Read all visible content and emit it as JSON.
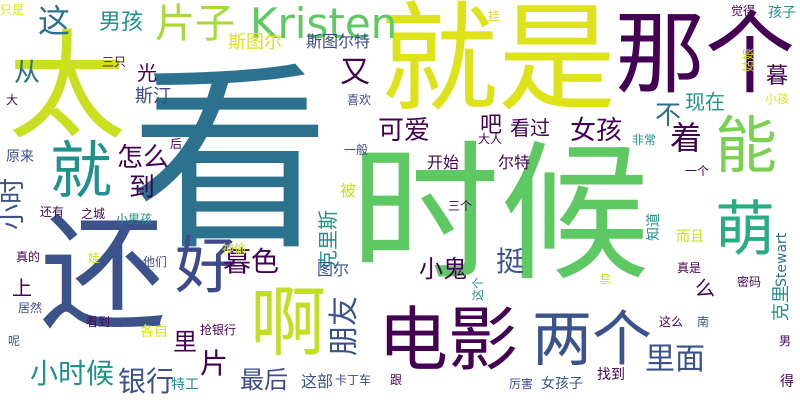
{
  "palette": {
    "dark_purple": "#440154",
    "indigo": "#3b528b",
    "teal": "#21918c",
    "blue": "#2c728e",
    "green": "#5ec962",
    "lime": "#c8e020",
    "yellow": "#fde725"
  },
  "words": [
    {
      "text": "看",
      "weight": 100,
      "color": "#2c728e"
    },
    {
      "text": "时候",
      "weight": 96,
      "color": "#5ec962"
    },
    {
      "text": "太",
      "weight": 78,
      "color": "#c8e020"
    },
    {
      "text": "就是",
      "weight": 82,
      "color": "#dde318"
    },
    {
      "text": "还",
      "weight": 76,
      "color": "#3b528b"
    },
    {
      "text": "那个",
      "weight": 66,
      "color": "#440154"
    },
    {
      "text": "就",
      "weight": 48,
      "color": "#21918c"
    },
    {
      "text": "能",
      "weight": 46,
      "color": "#7ad151"
    },
    {
      "text": "萌",
      "weight": 44,
      "color": "#27ad81"
    },
    {
      "text": "啊",
      "weight": 50,
      "color": "#c2df23"
    },
    {
      "text": "好",
      "weight": 40,
      "color": "#3e4a89"
    },
    {
      "text": "电影",
      "weight": 48,
      "color": "#440154"
    },
    {
      "text": "两个",
      "weight": 42,
      "color": "#3b528b"
    },
    {
      "text": "片子",
      "weight": 30,
      "color": "#a5db36"
    },
    {
      "text": "Kristen",
      "weight": 28,
      "color": "#5ec962"
    },
    {
      "text": "这",
      "weight": 24,
      "color": "#2c728e"
    },
    {
      "text": "男孩",
      "weight": 18,
      "color": "#21918c"
    },
    {
      "text": "又",
      "weight": 24,
      "color": "#440154"
    },
    {
      "text": "斯图尔",
      "weight": 14,
      "color": "#dde318"
    },
    {
      "text": "斯图尔特",
      "weight": 14,
      "color": "#3e4a89"
    },
    {
      "text": "光",
      "weight": 14,
      "color": "#440154"
    },
    {
      "text": "从",
      "weight": 18,
      "color": "#2c728e"
    },
    {
      "text": "不",
      "weight": 20,
      "color": "#2c728e"
    },
    {
      "text": "着",
      "weight": 24,
      "color": "#440154"
    },
    {
      "text": "暮",
      "weight": 16,
      "color": "#440154"
    },
    {
      "text": "可爱",
      "weight": 20,
      "color": "#440154"
    },
    {
      "text": "吧",
      "weight": 18,
      "color": "#440154"
    },
    {
      "text": "看过",
      "weight": 16,
      "color": "#440154"
    },
    {
      "text": "女孩",
      "weight": 20,
      "color": "#440154"
    },
    {
      "text": "现在",
      "weight": 16,
      "color": "#21918c"
    },
    {
      "text": "怎么",
      "weight": 18,
      "color": "#440154"
    },
    {
      "text": "到",
      "weight": 18,
      "color": "#440154"
    },
    {
      "text": "小时",
      "weight": 18,
      "color": "#3b528b"
    },
    {
      "text": "暮色",
      "weight": 20,
      "color": "#440154"
    },
    {
      "text": "挺",
      "weight": 20,
      "color": "#3b528b"
    },
    {
      "text": "小鬼",
      "weight": 16,
      "color": "#440154"
    },
    {
      "text": "朋友",
      "weight": 20,
      "color": "#3b528b"
    },
    {
      "text": "上",
      "weight": 16,
      "color": "#440154"
    },
    {
      "text": "里",
      "weight": 16,
      "color": "#440154"
    },
    {
      "text": "片",
      "weight": 18,
      "color": "#440154"
    },
    {
      "text": "小时候",
      "weight": 18,
      "color": "#21918c"
    },
    {
      "text": "银行",
      "weight": 18,
      "color": "#3b528b"
    },
    {
      "text": "最后",
      "weight": 16,
      "color": "#3e4a89"
    },
    {
      "text": "里面",
      "weight": 20,
      "color": "#3b528b"
    },
    {
      "text": "么",
      "weight": 14,
      "color": "#440154"
    },
    {
      "text": "斯汀",
      "weight": 12,
      "color": "#3e4a89"
    },
    {
      "text": "开始",
      "weight": 12,
      "color": "#440154"
    },
    {
      "text": "尔特",
      "weight": 12,
      "color": "#440154"
    },
    {
      "text": "克里斯",
      "weight": 12,
      "color": "#21918c"
    },
    {
      "text": "被",
      "weight": 12,
      "color": "#c8e020"
    },
    {
      "text": "图尔",
      "weight": 12,
      "color": "#3b528b"
    },
    {
      "text": "这部",
      "weight": 12,
      "color": "#3b528b"
    },
    {
      "text": "卡丁车",
      "weight": 10,
      "color": "#3e4a89"
    },
    {
      "text": "跟",
      "weight": 10,
      "color": "#440154"
    },
    {
      "text": "厉害",
      "weight": 10,
      "color": "#3e4a89"
    },
    {
      "text": "女孩子",
      "weight": 10,
      "color": "#3b528b"
    },
    {
      "text": "找到",
      "weight": 10,
      "color": "#440154"
    },
    {
      "text": "南",
      "weight": 10,
      "color": "#3b528b"
    },
    {
      "text": "这么",
      "weight": 10,
      "color": "#440154"
    },
    {
      "text": "知道",
      "weight": 10,
      "color": "#21918c"
    },
    {
      "text": "而且",
      "weight": 10,
      "color": "#c8e020"
    },
    {
      "text": "真是",
      "weight": 10,
      "color": "#440154"
    },
    {
      "text": "Stewart",
      "weight": 10,
      "color": "#2c728e"
    },
    {
      "text": "密码",
      "weight": 10,
      "color": "#440154"
    },
    {
      "text": "克里",
      "weight": 12,
      "color": "#21918c"
    },
    {
      "text": "男",
      "weight": 10,
      "color": "#440154"
    },
    {
      "text": "得",
      "weight": 10,
      "color": "#440154"
    },
    {
      "text": "原来",
      "weight": 10,
      "color": "#3b528b"
    },
    {
      "text": "还有",
      "weight": 10,
      "color": "#440154"
    },
    {
      "text": "之城",
      "weight": 10,
      "color": "#440154"
    },
    {
      "text": "小男孩",
      "weight": 10,
      "color": "#21918c"
    },
    {
      "text": "真的",
      "weight": 10,
      "color": "#440154"
    },
    {
      "text": "娃",
      "weight": 10,
      "color": "#c8e020"
    },
    {
      "text": "他们",
      "weight": 10,
      "color": "#3e4a89"
    },
    {
      "text": "居然",
      "weight": 10,
      "color": "#3e4a89"
    },
    {
      "text": "看到",
      "weight": 10,
      "color": "#440154"
    },
    {
      "text": "各自",
      "weight": 10,
      "color": "#dde318"
    },
    {
      "text": "呢",
      "weight": 10,
      "color": "#3b528b"
    },
    {
      "text": "特工",
      "weight": 10,
      "color": "#21918c"
    },
    {
      "text": "抢银行",
      "weight": 10,
      "color": "#440154"
    },
    {
      "text": "神偷",
      "weight": 10,
      "color": "#c8e020"
    },
    {
      "text": "只是",
      "weight": 10,
      "color": "#dde318"
    },
    {
      "text": "大",
      "weight": 10,
      "color": "#440154"
    },
    {
      "text": "三只",
      "weight": 10,
      "color": "#440154"
    },
    {
      "text": "喜欢",
      "weight": 10,
      "color": "#3e4a89"
    },
    {
      "text": "后",
      "weight": 10,
      "color": "#440154"
    },
    {
      "text": "大人",
      "weight": 10,
      "color": "#440154"
    },
    {
      "text": "非常",
      "weight": 10,
      "color": "#21918c"
    },
    {
      "text": "一般",
      "weight": 10,
      "color": "#3e4a89"
    },
    {
      "text": "三个",
      "weight": 10,
      "color": "#440154"
    },
    {
      "text": "这个",
      "weight": 10,
      "color": "#21918c"
    },
    {
      "text": "帅",
      "weight": 10,
      "color": "#c8e020"
    },
    {
      "text": "一个",
      "weight": 10,
      "color": "#440154"
    },
    {
      "text": "挂",
      "weight": 10,
      "color": "#dde318"
    },
    {
      "text": "觉得",
      "weight": 10,
      "color": "#440154"
    },
    {
      "text": "孩子",
      "weight": 10,
      "color": "#21918c"
    },
    {
      "text": "姑娘",
      "weight": 10,
      "color": "#c8e020"
    },
    {
      "text": "小孩",
      "weight": 10,
      "color": "#dde318"
    }
  ]
}
